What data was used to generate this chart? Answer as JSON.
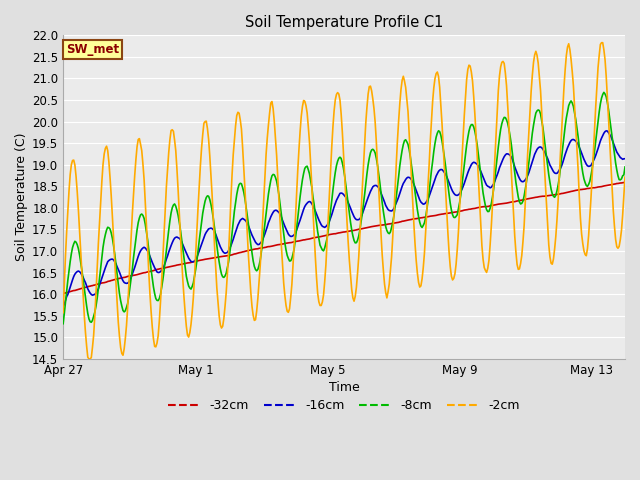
{
  "title": "Soil Temperature Profile C1",
  "xlabel": "Time",
  "ylabel": "Soil Temperature (C)",
  "ylim": [
    14.5,
    22.0
  ],
  "yticks": [
    14.5,
    15.0,
    15.5,
    16.0,
    16.5,
    17.0,
    17.5,
    18.0,
    18.5,
    19.0,
    19.5,
    20.0,
    20.5,
    21.0,
    21.5,
    22.0
  ],
  "xtick_positions": [
    0,
    4,
    8,
    12,
    16
  ],
  "xtick_labels": [
    "Apr 27",
    "May 1",
    "May 5",
    "May 9",
    "May 13"
  ],
  "colors": {
    "-32cm": "#cc0000",
    "-16cm": "#0000cc",
    "-8cm": "#00bb00",
    "-2cm": "#ffaa00"
  },
  "legend_label": "SW_met",
  "legend_box_color": "#ffff99",
  "legend_box_edge": "#8b4513",
  "background_color": "#e0e0e0",
  "plot_bg_color": "#ebebeb",
  "grid_color": "#ffffff",
  "n_points": 480
}
